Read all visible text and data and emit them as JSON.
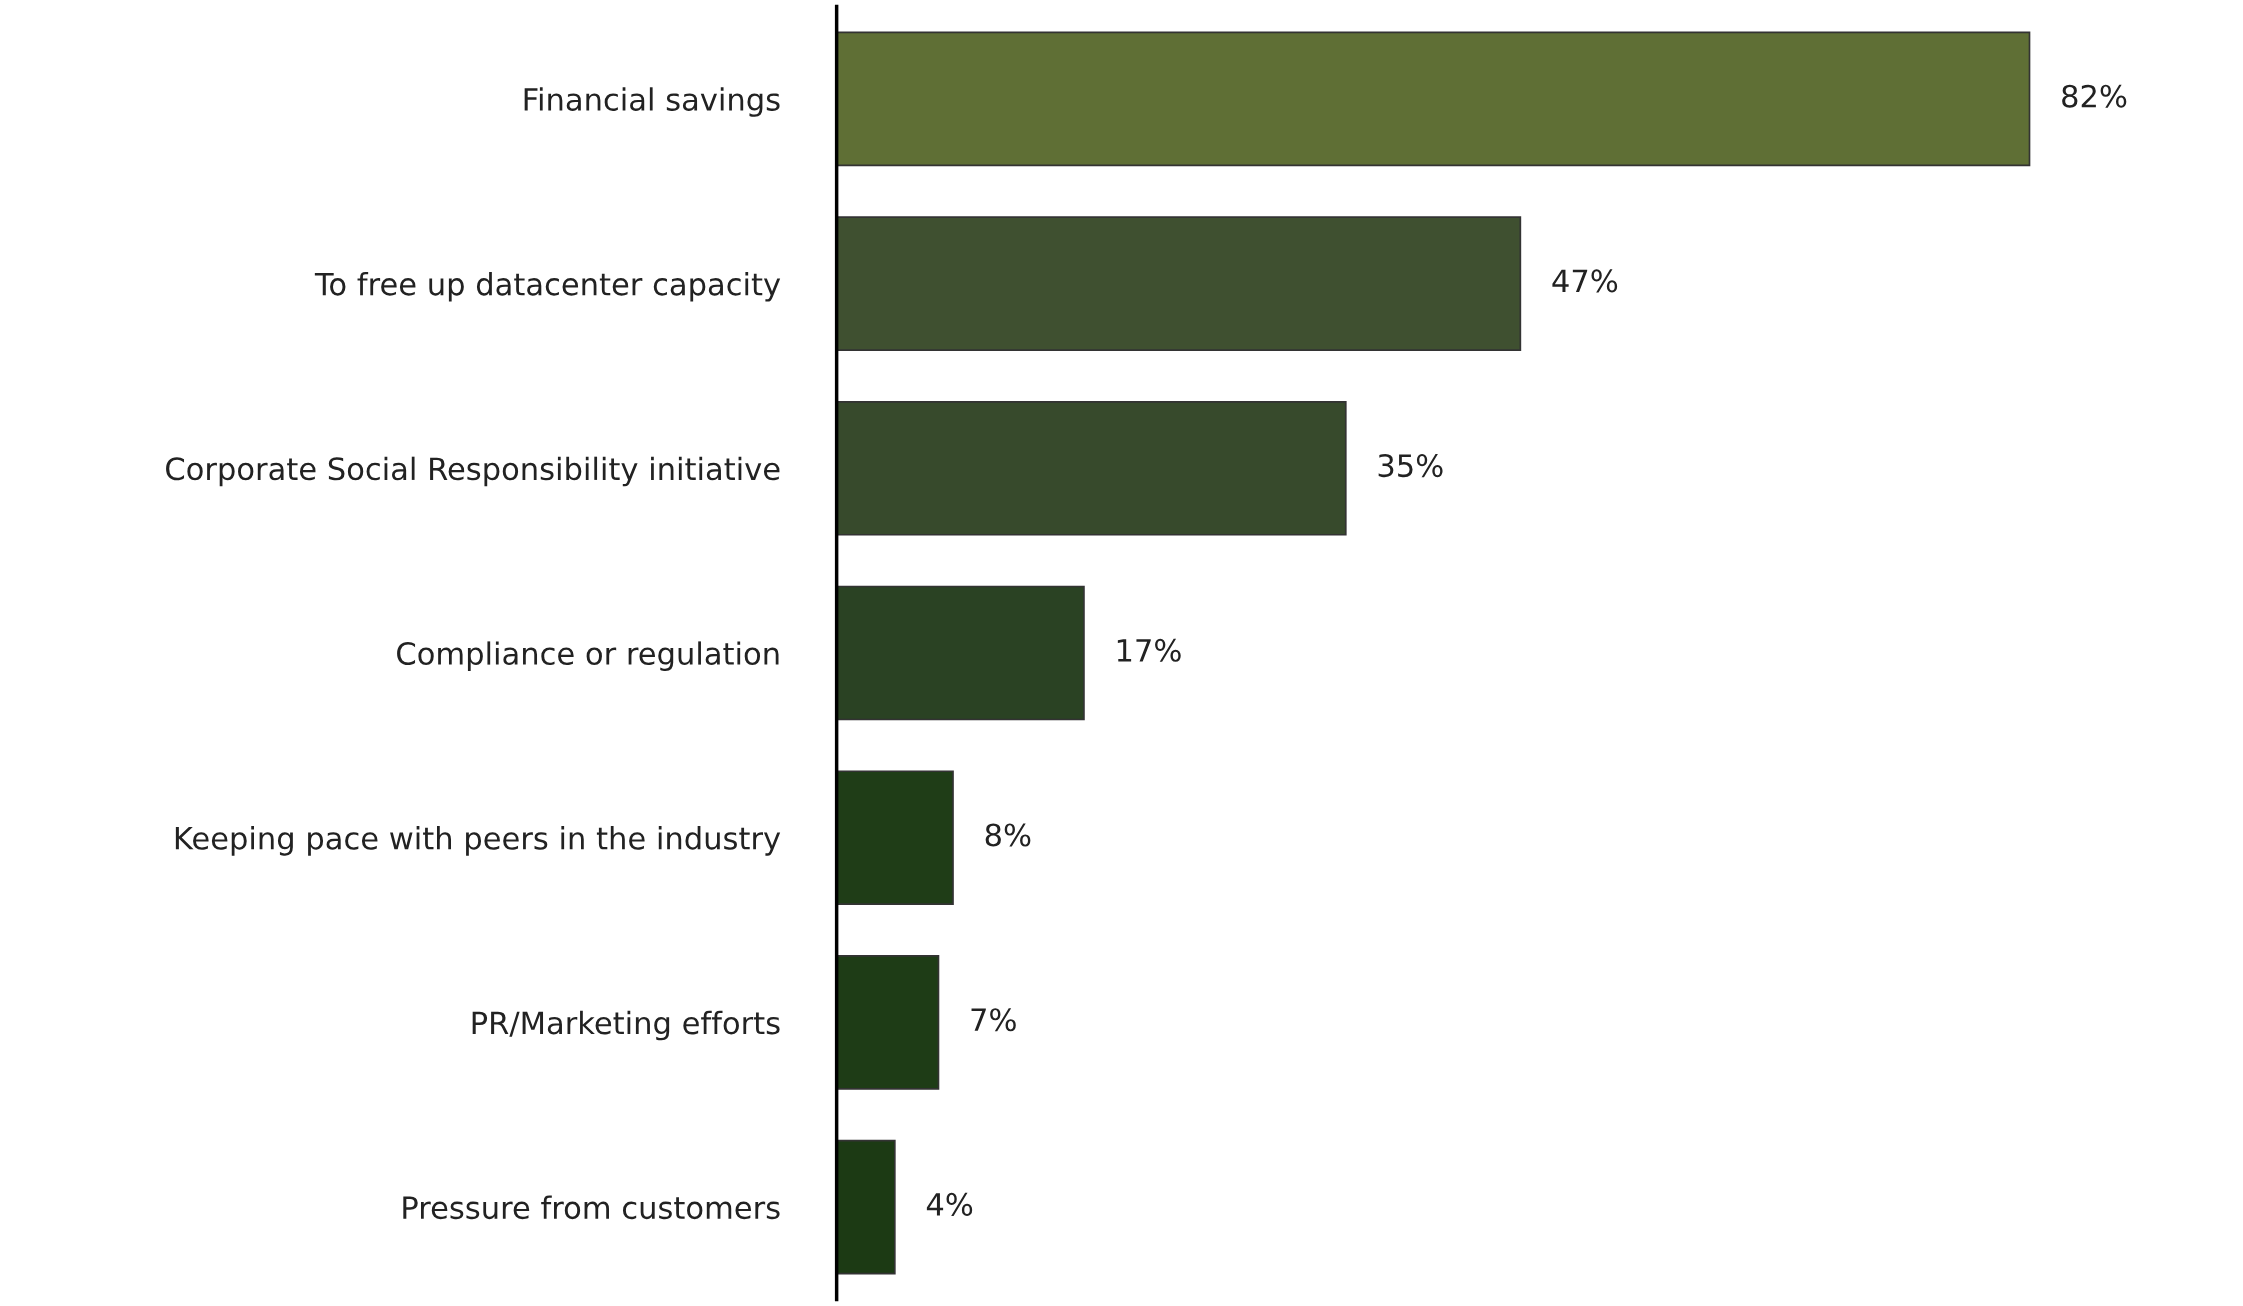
{
  "chart_data": {
    "type": "bar",
    "orientation": "horizontal",
    "categories": [
      "Financial savings",
      "To free up datacenter capacity",
      "Corporate Social Responsibility initiative",
      "Compliance or regulation",
      "Keeping pace with peers in the industry",
      "PR/Marketing efforts",
      "Pressure from customers"
    ],
    "values": [
      82,
      47,
      35,
      17,
      8,
      7,
      4
    ],
    "value_labels": [
      "82%",
      "47%",
      "35%",
      "17%",
      "8%",
      "7%",
      "4%"
    ],
    "colors": [
      "#5f6f35",
      "#3f5030",
      "#374a2c",
      "#2a4223",
      "#1f3d17",
      "#1e3c16",
      "#1c3a14"
    ],
    "grid": false,
    "legend": false
  }
}
